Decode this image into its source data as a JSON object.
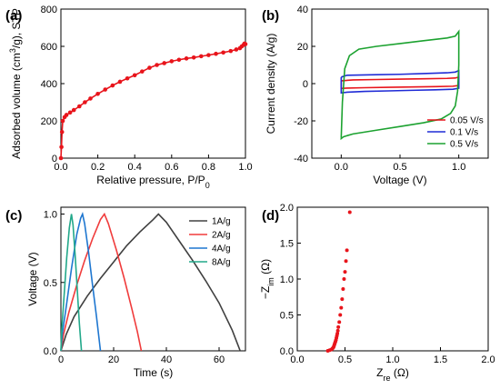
{
  "figure": {
    "panels": [
      "(a)",
      "(b)",
      "(c)",
      "(d)"
    ]
  },
  "chart_data": [
    {
      "panel": "(a)",
      "type": "line",
      "title": "",
      "xlabel": "Relative pressure, P/P",
      "xlabel_sub": "0",
      "ylabel": "Adsorbed volume (cm",
      "ylabel_sup": "3",
      "ylabel_tail": "/g), STP",
      "xlim": [
        0,
        1.0
      ],
      "ylim": [
        0,
        800
      ],
      "xticks": [
        "0.0",
        "0.2",
        "0.4",
        "0.6",
        "0.8",
        "1.0"
      ],
      "yticks": [
        "0",
        "200",
        "400",
        "600",
        "800"
      ],
      "color": "#e8141b",
      "series": [
        {
          "x": [
            0.0,
            0.003,
            0.006,
            0.01,
            0.02,
            0.03,
            0.05,
            0.07,
            0.1,
            0.13,
            0.16,
            0.2,
            0.24,
            0.28,
            0.32,
            0.36,
            0.4,
            0.44,
            0.48,
            0.52,
            0.56,
            0.6,
            0.64,
            0.68,
            0.72,
            0.76,
            0.8,
            0.84,
            0.88,
            0.92,
            0.95,
            0.97,
            0.98,
            0.99,
            0.995,
            1.0
          ],
          "y": [
            0,
            60,
            140,
            200,
            220,
            232,
            245,
            258,
            278,
            300,
            320,
            345,
            368,
            390,
            410,
            428,
            445,
            465,
            485,
            500,
            510,
            520,
            528,
            535,
            540,
            547,
            553,
            560,
            567,
            575,
            583,
            590,
            600,
            608,
            615,
            612
          ]
        }
      ]
    },
    {
      "panel": "(b)",
      "type": "line",
      "title": "",
      "xlabel": "Voltage (V)",
      "ylabel": "Current density (A/g)",
      "xlim": [
        -0.25,
        1.25
      ],
      "ylim": [
        -40,
        40
      ],
      "xticks": [
        "0.0",
        "0.5",
        "1.0"
      ],
      "yticks": [
        "-40",
        "-20",
        "0",
        "20",
        "40"
      ],
      "legend_position": "bottom-right",
      "series": [
        {
          "name": "0.05 V/s",
          "color": "#e8141b",
          "x": [
            0.0,
            0.1,
            0.3,
            0.5,
            0.7,
            0.9,
            0.97,
            1.0,
            1.0,
            0.95,
            0.8,
            0.6,
            0.4,
            0.2,
            0.05,
            0.0,
            0.0
          ],
          "y": [
            1.5,
            2.0,
            2.2,
            2.4,
            2.6,
            2.8,
            3.0,
            3.5,
            -1.0,
            -1.4,
            -1.6,
            -1.8,
            -2.0,
            -2.2,
            -2.4,
            -2.6,
            1.5
          ]
        },
        {
          "name": "0.1 V/s",
          "color": "#1f2bd6",
          "x": [
            0.0,
            0.05,
            0.3,
            0.5,
            0.7,
            0.9,
            0.97,
            1.0,
            1.0,
            0.95,
            0.8,
            0.6,
            0.4,
            0.2,
            0.05,
            0.0,
            0.0
          ],
          "y": [
            3.5,
            4.5,
            4.8,
            5.0,
            5.4,
            5.8,
            6.2,
            7.0,
            -2.5,
            -3.0,
            -3.3,
            -3.6,
            -3.9,
            -4.2,
            -4.6,
            -5.0,
            3.5
          ]
        },
        {
          "name": "0.5 V/s",
          "color": "#1ca230",
          "x": [
            0.0,
            0.01,
            0.03,
            0.07,
            0.15,
            0.3,
            0.5,
            0.7,
            0.9,
            0.97,
            1.0,
            1.0,
            0.99,
            0.97,
            0.93,
            0.85,
            0.7,
            0.5,
            0.3,
            0.1,
            0.02,
            0.0,
            0.0
          ],
          "y": [
            -29.0,
            -10.0,
            8.0,
            15.0,
            18.5,
            20.0,
            21.5,
            23.0,
            24.5,
            25.5,
            28.0,
            10.0,
            -4.0,
            -12.0,
            -16.0,
            -19.0,
            -21.0,
            -23.0,
            -25.0,
            -27.0,
            -28.5,
            -29.5,
            -29.0
          ]
        }
      ]
    },
    {
      "panel": "(c)",
      "type": "line",
      "title": "",
      "xlabel": "Time (s)",
      "ylabel": "Voltage (V)",
      "xlim": [
        0,
        70
      ],
      "ylim": [
        0,
        1.05
      ],
      "xticks": [
        "0",
        "20",
        "40",
        "60"
      ],
      "yticks": [
        "0.0",
        "0.5",
        "1.0"
      ],
      "legend_position": "top-right",
      "series": [
        {
          "name": "1A/g",
          "color": "#404040",
          "x": [
            0,
            2,
            5,
            10,
            15,
            20,
            25,
            30,
            35,
            37,
            40,
            45,
            50,
            55,
            60,
            65,
            68
          ],
          "y": [
            0.0,
            0.12,
            0.25,
            0.4,
            0.53,
            0.65,
            0.77,
            0.87,
            0.96,
            1.0,
            0.94,
            0.8,
            0.66,
            0.51,
            0.35,
            0.15,
            0.0
          ]
        },
        {
          "name": "2A/g",
          "color": "#f03c3c",
          "x": [
            0,
            1,
            3,
            6,
            9,
            12,
            15,
            16.5,
            18,
            21,
            24,
            27,
            29,
            30.5
          ],
          "y": [
            0.0,
            0.12,
            0.28,
            0.48,
            0.66,
            0.82,
            0.96,
            1.0,
            0.93,
            0.74,
            0.53,
            0.3,
            0.14,
            0.0
          ]
        },
        {
          "name": "4A/g",
          "color": "#1f77d0",
          "x": [
            0,
            0.5,
            2,
            4,
            6,
            7.5,
            8.2,
            9,
            10.5,
            12,
            13.5,
            15
          ],
          "y": [
            0.0,
            0.12,
            0.32,
            0.6,
            0.85,
            0.97,
            1.0,
            0.93,
            0.72,
            0.48,
            0.25,
            0.0
          ]
        },
        {
          "name": "8A/g",
          "color": "#22a88a",
          "x": [
            0,
            0.3,
            1.2,
            2.2,
            3.2,
            4.0,
            4.6,
            5.4,
            6.2,
            7.0,
            7.8
          ],
          "y": [
            0.0,
            0.15,
            0.4,
            0.68,
            0.9,
            1.0,
            0.92,
            0.7,
            0.45,
            0.2,
            0.0
          ]
        }
      ]
    },
    {
      "panel": "(d)",
      "type": "scatter",
      "title": "",
      "xlabel": "Z",
      "xlabel_sub": "re",
      "xlabel_tail": " (Ω)",
      "ylabel": "−Z",
      "ylabel_sub": "im",
      "ylabel_tail": " (Ω)",
      "xlim": [
        0,
        2.0
      ],
      "ylim": [
        0,
        2.0
      ],
      "xticks": [
        "0.0",
        "0.5",
        "1.0",
        "1.5",
        "2.0"
      ],
      "yticks": [
        "0.0",
        "0.5",
        "1.0",
        "1.5",
        "2.0"
      ],
      "color": "#e8141b",
      "series": [
        {
          "x": [
            0.32,
            0.34,
            0.36,
            0.37,
            0.38,
            0.385,
            0.39,
            0.395,
            0.4,
            0.405,
            0.41,
            0.415,
            0.42,
            0.425,
            0.43,
            0.44,
            0.45,
            0.46,
            0.47,
            0.48,
            0.49,
            0.5,
            0.51,
            0.52,
            0.55
          ],
          "y": [
            0.0,
            0.01,
            0.02,
            0.035,
            0.05,
            0.07,
            0.09,
            0.11,
            0.13,
            0.15,
            0.18,
            0.21,
            0.24,
            0.28,
            0.33,
            0.4,
            0.5,
            0.6,
            0.72,
            0.86,
            1.0,
            1.1,
            1.25,
            1.4,
            1.93
          ]
        }
      ]
    }
  ]
}
